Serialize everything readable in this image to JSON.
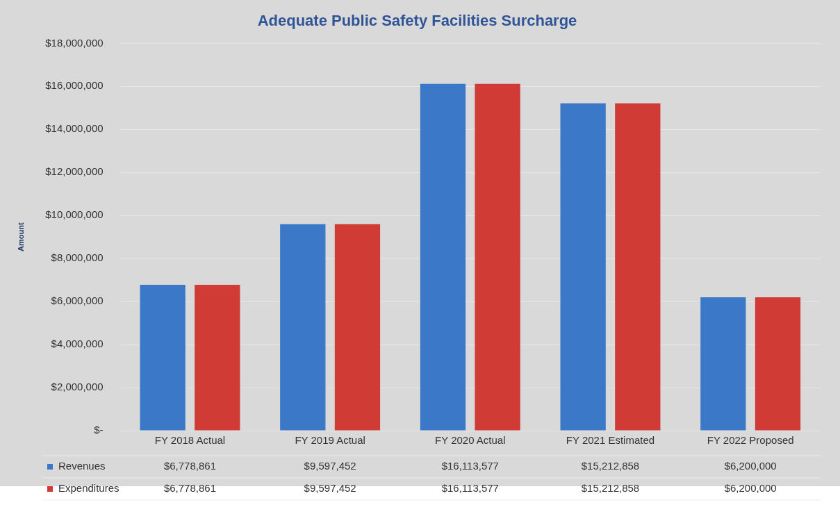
{
  "chart_data": {
    "type": "bar",
    "title": "Adequate Public Safety Facilities Surcharge",
    "ylabel": "Amount",
    "categories": [
      "FY 2018 Actual",
      "FY 2019 Actual",
      "FY 2020 Actual",
      "FY 2021 Estimated",
      "FY 2022 Proposed"
    ],
    "series": [
      {
        "name": "Revenues",
        "color": "#3b78c8",
        "values": [
          6778861,
          9597452,
          16113577,
          15212858,
          6200000
        ],
        "value_labels": [
          "$6,778,861",
          "$9,597,452",
          "$16,113,577",
          "$15,212,858",
          "$6,200,000"
        ]
      },
      {
        "name": "Expenditures",
        "color": "#d03b36",
        "values": [
          6778861,
          9597452,
          16113577,
          15212858,
          6200000
        ],
        "value_labels": [
          "$6,778,861",
          "$9,597,452",
          "$16,113,577",
          "$15,212,858",
          "$6,200,000"
        ]
      }
    ],
    "ylim": [
      0,
      18000000
    ],
    "yticks": [
      {
        "value": 0,
        "label": "$-"
      },
      {
        "value": 2000000,
        "label": "$2,000,000"
      },
      {
        "value": 4000000,
        "label": "$4,000,000"
      },
      {
        "value": 6000000,
        "label": "$6,000,000"
      },
      {
        "value": 8000000,
        "label": "$8,000,000"
      },
      {
        "value": 10000000,
        "label": "$10,000,000"
      },
      {
        "value": 12000000,
        "label": "$12,000,000"
      },
      {
        "value": 14000000,
        "label": "$14,000,000"
      },
      {
        "value": 16000000,
        "label": "$16,000,000"
      },
      {
        "value": 18000000,
        "label": "$18,000,000"
      }
    ],
    "grid": "y",
    "legend": "bottom"
  }
}
